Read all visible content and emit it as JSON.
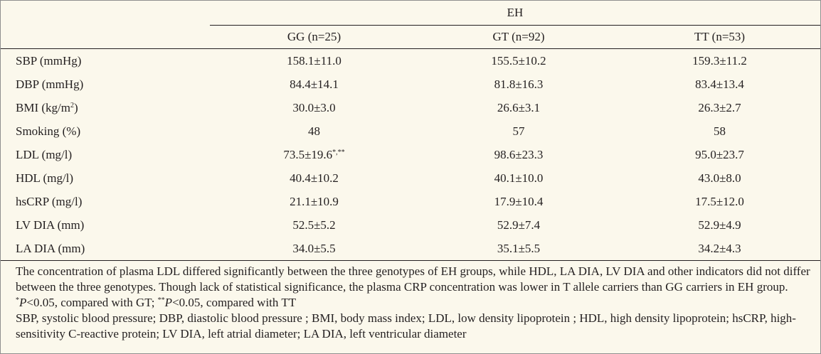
{
  "table": {
    "group_header": "EH",
    "columns": [
      "GG (n=25)",
      "GT (n=92)",
      "TT (n=53)"
    ],
    "rows": [
      {
        "label": "SBP (mmHg)",
        "values": [
          "158.1±11.0",
          "155.5±10.2",
          "159.3±11.2"
        ]
      },
      {
        "label": "DBP (mmHg)",
        "values": [
          "84.4±14.1",
          "81.8±16.3",
          "83.4±13.4"
        ]
      },
      {
        "label_main": "BMI (kg/m",
        "label_sup": "2",
        "label_tail": ")",
        "values": [
          "30.0±3.0",
          "26.6±3.1",
          "26.3±2.7"
        ]
      },
      {
        "label": "Smoking (%)",
        "values": [
          "48",
          "57",
          "58"
        ]
      },
      {
        "label": "LDL (mg/l)",
        "values": [
          "73.5±19.6",
          "98.6±23.3",
          "95.0±23.7"
        ],
        "first_value_sup": "*,**"
      },
      {
        "label": "HDL (mg/l)",
        "values": [
          "40.4±10.2",
          "40.1±10.0",
          "43.0±8.0"
        ]
      },
      {
        "label": "hsCRP (mg/l)",
        "values": [
          "21.1±10.9",
          "17.9±10.4",
          "17.5±12.0"
        ]
      },
      {
        "label": "LV DIA (mm)",
        "values": [
          "52.5±5.2",
          "52.9±7.4",
          "52.9±4.9"
        ]
      },
      {
        "label": "LA DIA (mm)",
        "values": [
          "34.0±5.5",
          "35.1±5.5",
          "34.2±4.3"
        ]
      }
    ]
  },
  "notes": {
    "paragraph1": "The concentration of plasma LDL differed significantly between the three genotypes of EH groups, while HDL, LA DIA, LV DIA and other indicators did not differ between the three genotypes. Though lack of statistical significance, the plasma CRP concentration was lower in T allele carriers than GG carriers in EH group. ",
    "fn1_mark": "*",
    "fn1_p": "P",
    "fn1_text": "<0.05, compared with GT; ",
    "fn2_mark": "**",
    "fn2_p": "P",
    "fn2_text": "<0.05, compared with TT",
    "abbreviations": "SBP, systolic blood pressure; DBP, diastolic blood pressure ; BMI, body mass index; LDL, low density lipoprotein ; HDL, high density lipoprotein; hsCRP, high-sensitivity C-reactive protein; LV DIA, left atrial diameter; LA DIA, left ventricular diameter"
  }
}
